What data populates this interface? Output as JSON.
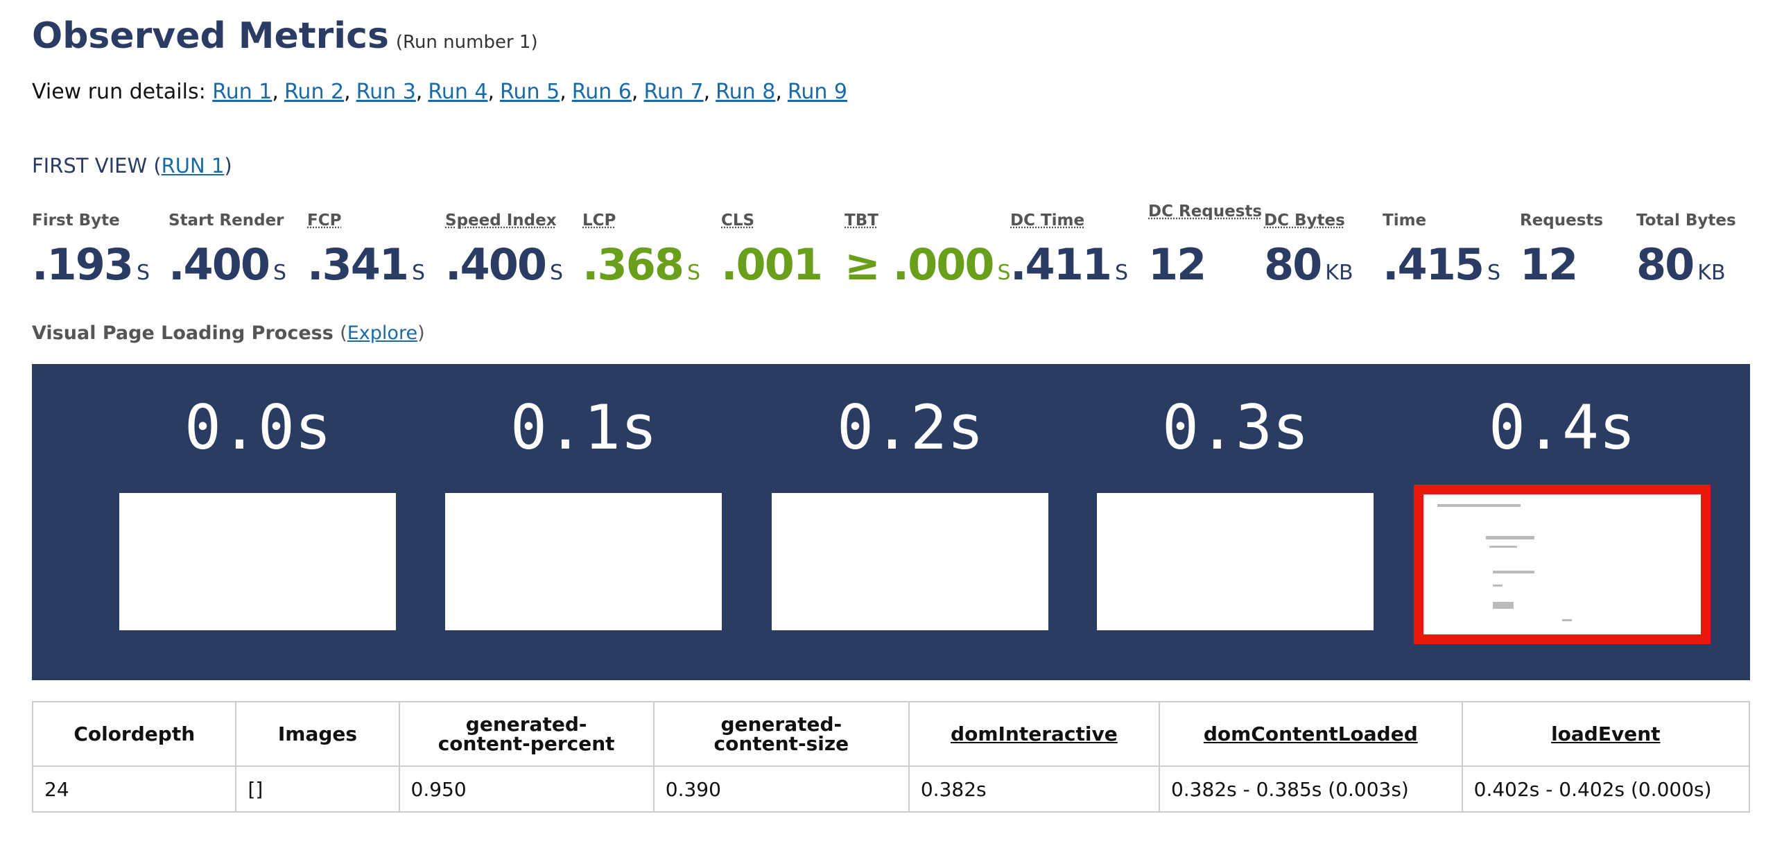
{
  "header": {
    "title": "Observed Metrics",
    "subtitle": "(Run number 1)"
  },
  "runs": {
    "label": "View run details:",
    "separator": ",",
    "links": [
      "Run 1",
      "Run 2",
      "Run 3",
      "Run 4",
      "Run 5",
      "Run 6",
      "Run 7",
      "Run 8",
      "Run 9"
    ]
  },
  "first_view": {
    "label": "FIRST VIEW (",
    "link": "RUN 1",
    "close": ")"
  },
  "metrics": [
    {
      "label": "First Byte",
      "value": ".193",
      "unit": "S"
    },
    {
      "label": "Start Render",
      "value": ".400",
      "unit": "S"
    },
    {
      "label": "FCP",
      "value": ".341",
      "unit": "S"
    },
    {
      "label": "Speed Index",
      "value": ".400",
      "unit": "S"
    },
    {
      "label": "LCP",
      "value": ".368",
      "unit": "S"
    },
    {
      "label": "CLS",
      "value": ".001"
    },
    {
      "label": "TBT",
      "value": "≥ .000",
      "unit": "S"
    },
    {
      "label": "DC Time",
      "value": ".411",
      "unit": "S"
    },
    {
      "label": "DC Requests",
      "value": "12"
    },
    {
      "label": "DC Bytes",
      "value": "80",
      "unit": "KB"
    },
    {
      "label": "Time",
      "value": ".415",
      "unit": "S"
    },
    {
      "label": "Requests",
      "value": "12"
    },
    {
      "label": "Total Bytes",
      "value": "80",
      "unit": "KB"
    }
  ],
  "visual": {
    "label": "Visual Page Loading Process",
    "open": "(",
    "link": "Explore",
    "close": ")"
  },
  "filmstrip": {
    "frames": [
      "0.0s",
      "0.1s",
      "0.2s",
      "0.3s",
      "0.4s"
    ]
  },
  "table": {
    "headers": [
      "Colordepth",
      "Images",
      "generated-content-percent",
      "generated-content-size",
      "domInteractive",
      "domContentLoaded",
      "loadEvent"
    ],
    "rows": [
      [
        "24",
        "[]",
        "0.950",
        "0.390",
        "0.382s",
        "0.382s - 0.385s (0.003s)",
        "0.402s - 0.402s (0.000s)"
      ]
    ]
  }
}
